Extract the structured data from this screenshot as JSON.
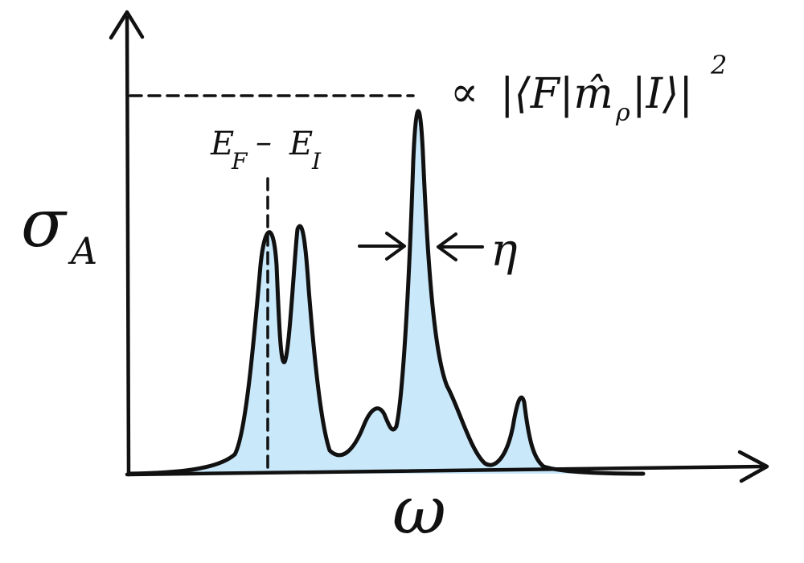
{
  "labels": {
    "y_axis_main": "σ",
    "y_axis_sub": "A",
    "x_axis": "ω",
    "peak_energy_a": "E",
    "peak_energy_a_sub": "F",
    "peak_energy_minus": "–",
    "peak_energy_b": "E",
    "peak_energy_b_sub": "I",
    "intensity_prefix": "∝",
    "intensity_matrix": "|⟨F|m̂",
    "intensity_matrix_sub": "ρ",
    "intensity_matrix_end": "|I⟩|",
    "intensity_power": "2",
    "width_symbol": "η"
  },
  "colors": {
    "ink": "#111111",
    "fill": "#c9e8fa"
  }
}
